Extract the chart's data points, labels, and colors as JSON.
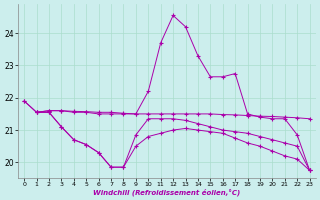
{
  "xlabel": "Windchill (Refroidissement éolien,°C)",
  "background_color": "#cceeed",
  "grid_color": "#aaddcc",
  "line_color": "#aa00aa",
  "xlim": [
    -0.5,
    23.5
  ],
  "ylim": [
    19.5,
    24.9
  ],
  "yticks": [
    20,
    21,
    22,
    23,
    24
  ],
  "xticks": [
    0,
    1,
    2,
    3,
    4,
    5,
    6,
    7,
    8,
    9,
    10,
    11,
    12,
    13,
    14,
    15,
    16,
    17,
    18,
    19,
    20,
    21,
    22,
    23
  ],
  "series": {
    "line1": {
      "x": [
        0,
        1,
        2,
        3,
        4,
        5,
        6,
        7,
        8,
        9,
        10,
        11,
        12,
        13,
        14,
        15,
        16,
        17,
        18,
        19,
        20,
        21,
        22,
        23
      ],
      "y": [
        21.9,
        21.55,
        21.6,
        21.6,
        21.58,
        21.57,
        21.55,
        21.55,
        21.52,
        21.5,
        21.5,
        21.5,
        21.5,
        21.5,
        21.5,
        21.5,
        21.48,
        21.47,
        21.45,
        21.43,
        21.42,
        21.4,
        21.38,
        21.35
      ]
    },
    "line2": {
      "x": [
        0,
        1,
        2,
        3,
        4,
        5,
        6,
        7,
        8,
        9,
        10,
        11,
        12,
        13,
        14,
        15,
        16,
        17,
        18,
        19,
        20,
        21,
        22,
        23
      ],
      "y": [
        21.9,
        21.55,
        21.6,
        21.6,
        21.55,
        21.55,
        21.5,
        21.5,
        21.5,
        21.5,
        22.2,
        23.7,
        24.55,
        24.2,
        23.3,
        22.65,
        22.65,
        22.75,
        21.5,
        21.4,
        21.35,
        21.35,
        20.85,
        19.75
      ]
    },
    "line3": {
      "x": [
        1,
        2,
        3,
        4,
        5,
        6,
        7,
        8,
        9,
        10,
        11,
        12,
        13,
        14,
        15,
        16,
        17,
        18,
        19,
        20,
        21,
        22,
        23
      ],
      "y": [
        21.55,
        21.55,
        21.1,
        20.7,
        20.55,
        20.3,
        19.85,
        19.85,
        20.85,
        21.35,
        21.35,
        21.35,
        21.3,
        21.2,
        21.1,
        21.0,
        20.95,
        20.9,
        20.8,
        20.7,
        20.6,
        20.5,
        19.75
      ]
    },
    "line4": {
      "x": [
        1,
        2,
        3,
        4,
        5,
        6,
        7,
        8,
        9,
        10,
        11,
        12,
        13,
        14,
        15,
        16,
        17,
        18,
        19,
        20,
        21,
        22,
        23
      ],
      "y": [
        21.55,
        21.55,
        21.1,
        20.7,
        20.55,
        20.3,
        19.85,
        19.85,
        20.5,
        20.8,
        20.9,
        21.0,
        21.05,
        21.0,
        20.95,
        20.9,
        20.75,
        20.6,
        20.5,
        20.35,
        20.2,
        20.1,
        19.75
      ]
    }
  }
}
